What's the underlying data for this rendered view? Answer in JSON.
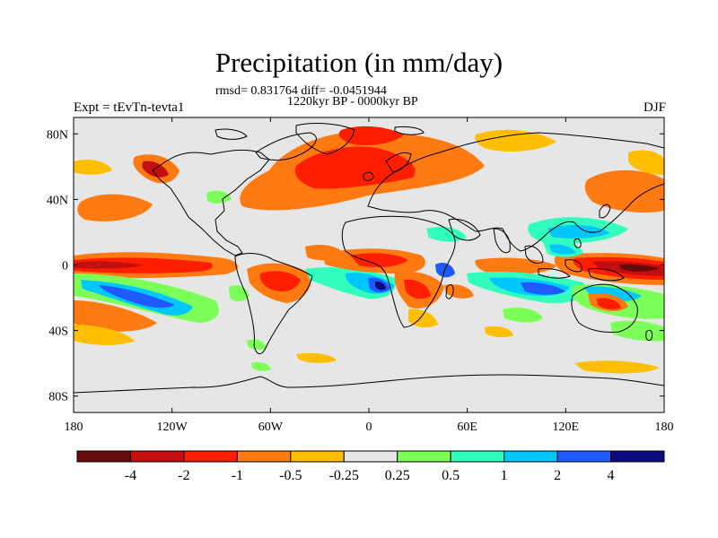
{
  "map": {
    "title": "Precipitation (in mm/day)",
    "stats_line": "rmsd= 0.831764 diff= -0.0451944",
    "period_line": "1220kyr BP - 0000kyr BP",
    "experiment_label": "Expt = tEvTn-tevta1",
    "season_label": "DJF",
    "lat_ticks": [
      {
        "label": "80N",
        "lat": 80
      },
      {
        "label": "40N",
        "lat": 40
      },
      {
        "label": "0",
        "lat": 0
      },
      {
        "label": "40S",
        "lat": -40
      },
      {
        "label": "80S",
        "lat": -80
      }
    ],
    "lon_ticks": [
      {
        "label": "180",
        "lon": -180
      },
      {
        "label": "120W",
        "lon": -120
      },
      {
        "label": "60W",
        "lon": -60
      },
      {
        "label": "0",
        "lon": 0
      },
      {
        "label": "60E",
        "lon": 60
      },
      {
        "label": "120E",
        "lon": 120
      },
      {
        "label": "180",
        "lon": 180
      }
    ],
    "background_color": "#e6e6e6"
  },
  "colorbar": {
    "colors": [
      "#670a0a",
      "#c30f0f",
      "#ff1e00",
      "#ff7a10",
      "#ffbf00",
      "#e6e6e6",
      "#7dff5a",
      "#32ffbe",
      "#00c8ff",
      "#1e5aff",
      "#0a0a7d"
    ],
    "labels": [
      "-4",
      "-2",
      "-1",
      "-0.5",
      "-0.25",
      "0.25",
      "0.5",
      "1",
      "2",
      "4"
    ]
  }
}
